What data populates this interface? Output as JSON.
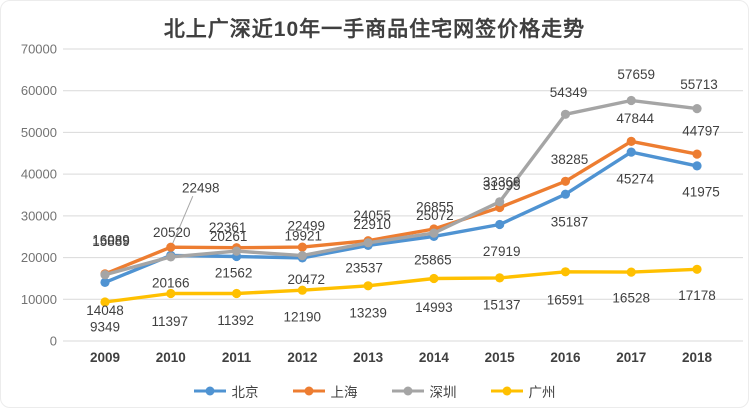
{
  "chart_data": {
    "type": "line",
    "title": "北上广深近10年一手商品住宅网签价格走势",
    "categories": [
      "2009",
      "2010",
      "2011",
      "2012",
      "2013",
      "2014",
      "2015",
      "2016",
      "2017",
      "2018"
    ],
    "ylim": [
      0,
      70000
    ],
    "ytick_interval": 10000,
    "ytick_labels": [
      "0",
      "10000",
      "20000",
      "30000",
      "40000",
      "50000",
      "60000",
      "70000"
    ],
    "grid": "horizontal-light",
    "legend_position": "bottom",
    "axis_label_color": "#737373",
    "category_label_color": "#404040",
    "data_label_color": "#404040",
    "gridline_color": "#d9d9d9",
    "callout_line_color": "#a6a6a6",
    "series": [
      {
        "name": "北京",
        "color": "#4f93d2",
        "values": [
          14048,
          20520,
          20261,
          19921,
          22910,
          25072,
          27919,
          35187,
          45274,
          41975
        ],
        "label_offsets": [
          [
            0,
            28
          ],
          [
            1,
            -23
          ],
          [
            -8,
            -20
          ],
          [
            1,
            -22
          ],
          [
            4,
            -21
          ],
          [
            1,
            -21
          ],
          [
            2,
            27
          ],
          [
            4,
            28
          ],
          [
            4,
            27
          ],
          [
            4,
            26
          ]
        ]
      },
      {
        "name": "上海",
        "color": "#ed7d31",
        "values": [
          16089,
          22498,
          22361,
          22499,
          24055,
          26855,
          31995,
          38285,
          47844,
          44797
        ],
        "label_offsets": [
          [
            6,
            -34
          ],
          [
            30,
            -59
          ],
          [
            -9,
            -20
          ],
          [
            4,
            -21
          ],
          [
            4,
            -25
          ],
          [
            1,
            -22
          ],
          [
            2,
            -22
          ],
          [
            4,
            -22
          ],
          [
            4,
            -23
          ],
          [
            4,
            -23
          ]
        ],
        "callout_index": 1
      },
      {
        "name": "深圳",
        "color": "#a5a5a5",
        "values": [
          15889,
          20166,
          21562,
          20472,
          23537,
          25865,
          33369,
          54349,
          57659,
          55713
        ],
        "label_offsets": [
          [
            6,
            -33
          ],
          [
            0,
            26
          ],
          [
            -3,
            22
          ],
          [
            4,
            24
          ],
          [
            -4,
            25
          ],
          [
            -1,
            27
          ],
          [
            2,
            -20
          ],
          [
            3,
            -22
          ],
          [
            5,
            -26
          ],
          [
            2,
            -24
          ]
        ]
      },
      {
        "name": "广州",
        "color": "#ffc000",
        "values": [
          9349,
          11397,
          11392,
          12190,
          13239,
          14993,
          15137,
          16591,
          16528,
          17178
        ],
        "label_offsets": [
          [
            0,
            25
          ],
          [
            -1,
            28
          ],
          [
            -1,
            27
          ],
          [
            0,
            27
          ],
          [
            0,
            27
          ],
          [
            0,
            29
          ],
          [
            2,
            27
          ],
          [
            0,
            28
          ],
          [
            0,
            26
          ],
          [
            0,
            26
          ]
        ]
      }
    ]
  }
}
